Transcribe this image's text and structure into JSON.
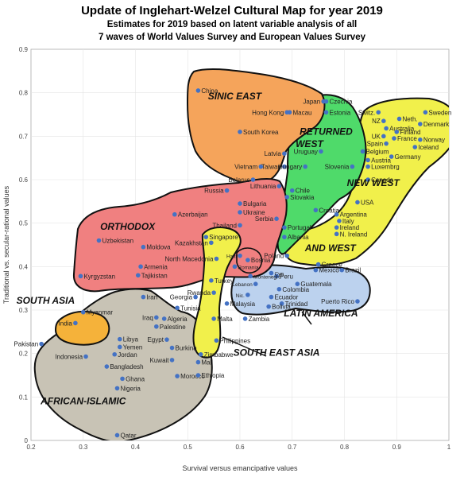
{
  "titles": {
    "main": "Update of Inglehart-Welzel Cultural Map for year 2019",
    "sub1": "Estimates for 2019 based on latent variable analysis of all",
    "sub2": "7 waves of World Values Survey and European Values Survey"
  },
  "chart_data": {
    "type": "scatter",
    "title": "Update of Inglehart-Welzel Cultural Map for year 2019",
    "xlabel": "Survival versus emancipative values",
    "ylabel": "Traditional vs. secular-rational values",
    "xlim": [
      0.2,
      1.0
    ],
    "ylim": [
      0.0,
      0.9
    ],
    "xticks": [
      "0.2",
      "0.3",
      "0.4",
      "0.5",
      "0.6",
      "0.7",
      "0.8",
      "0.9",
      "1"
    ],
    "yticks": [
      "0",
      "0.1",
      "0.2",
      "0.3",
      "0.4",
      "0.5",
      "0.6",
      "0.7",
      "0.8",
      "0.9"
    ],
    "point_color": "#4472c4",
    "regions": [
      {
        "label": "SINIC EAST",
        "color": "#f5a45b",
        "lx": 0.59,
        "ly": 0.785
      },
      {
        "label": "RETURNED",
        "color": "#4fda6a",
        "lx": 0.765,
        "ly": 0.703
      },
      {
        "label": "WEST",
        "color": "#4fda6a",
        "lx": 0.733,
        "ly": 0.675
      },
      {
        "label": "NEW WEST",
        "color": "#f1f04b",
        "lx": 0.855,
        "ly": 0.585
      },
      {
        "label": "ORTHODOX",
        "color": "#f08080",
        "lx": 0.385,
        "ly": 0.485
      },
      {
        "label": "AND WEST",
        "color": "#f1f04b",
        "lx": 0.773,
        "ly": 0.435
      },
      {
        "label": "SOUTH ASIA",
        "color": "#f5b23a",
        "lx": 0.228,
        "ly": 0.315
      },
      {
        "label": "LATIN AMERICA",
        "color": "#bcd2ee",
        "lx": 0.755,
        "ly": 0.285
      },
      {
        "label": "SOUTH EAST ASIA",
        "color": "#f1f04b",
        "lx": 0.67,
        "ly": 0.195
      },
      {
        "label": "AFRICAN-ISLAMIC",
        "color": "#c8c3b5",
        "lx": 0.3,
        "ly": 0.083
      }
    ],
    "points": [
      {
        "name": "China",
        "x": 0.52,
        "y": 0.805
      },
      {
        "name": "Japan",
        "x": 0.76,
        "y": 0.78
      },
      {
        "name": "Czechia",
        "x": 0.765,
        "y": 0.78
      },
      {
        "name": "Hong Kong",
        "x": 0.69,
        "y": 0.755
      },
      {
        "name": "Macau",
        "x": 0.695,
        "y": 0.755
      },
      {
        "name": "Estonia",
        "x": 0.765,
        "y": 0.755
      },
      {
        "name": "South Korea",
        "x": 0.6,
        "y": 0.71
      },
      {
        "name": "Vietnam",
        "x": 0.64,
        "y": 0.63
      },
      {
        "name": "Taiwan",
        "x": 0.685,
        "y": 0.63
      },
      {
        "name": "Latvia",
        "x": 0.685,
        "y": 0.66
      },
      {
        "name": "Hungary",
        "x": 0.725,
        "y": 0.63
      },
      {
        "name": "Slovenia",
        "x": 0.815,
        "y": 0.63
      },
      {
        "name": "Uruguay",
        "x": 0.755,
        "y": 0.665
      },
      {
        "name": "Belarus",
        "x": 0.625,
        "y": 0.6
      },
      {
        "name": "Russia",
        "x": 0.575,
        "y": 0.575
      },
      {
        "name": "Lithuania",
        "x": 0.675,
        "y": 0.585
      },
      {
        "name": "Chile",
        "x": 0.7,
        "y": 0.575
      },
      {
        "name": "Slovakia",
        "x": 0.69,
        "y": 0.56
      },
      {
        "name": "Bulgaria",
        "x": 0.6,
        "y": 0.545
      },
      {
        "name": "Ukraine",
        "x": 0.6,
        "y": 0.525
      },
      {
        "name": "Croatia",
        "x": 0.745,
        "y": 0.53
      },
      {
        "name": "Azerbaijan",
        "x": 0.475,
        "y": 0.52
      },
      {
        "name": "Argentina",
        "x": 0.785,
        "y": 0.52
      },
      {
        "name": "Serbia",
        "x": 0.67,
        "y": 0.51
      },
      {
        "name": "Italy",
        "x": 0.79,
        "y": 0.505
      },
      {
        "name": "Thailand",
        "x": 0.6,
        "y": 0.495
      },
      {
        "name": "Portugal",
        "x": 0.685,
        "y": 0.49
      },
      {
        "name": "Ireland",
        "x": 0.785,
        "y": 0.49
      },
      {
        "name": "N. Ireland",
        "x": 0.785,
        "y": 0.475
      },
      {
        "name": "Uzbekistan",
        "x": 0.33,
        "y": 0.46
      },
      {
        "name": "Kazakhstan",
        "x": 0.545,
        "y": 0.455
      },
      {
        "name": "Albania",
        "x": 0.685,
        "y": 0.468
      },
      {
        "name": "Moldova",
        "x": 0.415,
        "y": 0.445
      },
      {
        "name": "Poland",
        "x": 0.69,
        "y": 0.425
      },
      {
        "name": "Greece",
        "x": 0.75,
        "y": 0.405
      },
      {
        "name": "Bosnia",
        "x": 0.615,
        "y": 0.415
      },
      {
        "name": "Haiti",
        "x": 0.6,
        "y": 0.425
      },
      {
        "name": "North Macedonia",
        "x": 0.555,
        "y": 0.418
      },
      {
        "name": "Armenia",
        "x": 0.41,
        "y": 0.4
      },
      {
        "name": "Romania",
        "x": 0.59,
        "y": 0.4
      },
      {
        "name": "Mexico",
        "x": 0.745,
        "y": 0.392
      },
      {
        "name": "Brazil",
        "x": 0.795,
        "y": 0.392
      },
      {
        "name": "Tajikistan",
        "x": 0.405,
        "y": 0.38
      },
      {
        "name": "Kyrgyzstan",
        "x": 0.295,
        "y": 0.378
      },
      {
        "name": "Peru",
        "x": 0.67,
        "y": 0.378
      },
      {
        "name": "Turkey",
        "x": 0.545,
        "y": 0.368
      },
      {
        "name": "Montenegro",
        "x": 0.62,
        "y": 0.378
      },
      {
        "name": "Lebanon",
        "x": 0.63,
        "y": 0.36
      },
      {
        "name": "Guatemala",
        "x": 0.71,
        "y": 0.36
      },
      {
        "name": "Colombia",
        "x": 0.675,
        "y": 0.348
      },
      {
        "name": "Rwanda",
        "x": 0.55,
        "y": 0.34
      },
      {
        "name": "Nic.",
        "x": 0.615,
        "y": 0.335
      },
      {
        "name": "Ecuador",
        "x": 0.66,
        "y": 0.33
      },
      {
        "name": "Iran",
        "x": 0.415,
        "y": 0.33
      },
      {
        "name": "Georgia",
        "x": 0.515,
        "y": 0.33
      },
      {
        "name": "Cyp",
        "x": 0.66,
        "y": 0.385
      },
      {
        "name": "Puerto Rico",
        "x": 0.825,
        "y": 0.32
      },
      {
        "name": "Malaysia",
        "x": 0.575,
        "y": 0.315
      },
      {
        "name": "Trinidad",
        "x": 0.68,
        "y": 0.315
      },
      {
        "name": "Bolivia",
        "x": 0.655,
        "y": 0.308
      },
      {
        "name": "Myanmar",
        "x": 0.3,
        "y": 0.295
      },
      {
        "name": "Tunisia",
        "x": 0.48,
        "y": 0.305
      },
      {
        "name": "India",
        "x": 0.285,
        "y": 0.27
      },
      {
        "name": "Iraq",
        "x": 0.44,
        "y": 0.283
      },
      {
        "name": "Algeria",
        "x": 0.455,
        "y": 0.28
      },
      {
        "name": "Malta",
        "x": 0.55,
        "y": 0.28
      },
      {
        "name": "Zambia",
        "x": 0.61,
        "y": 0.28
      },
      {
        "name": "Palestine",
        "x": 0.44,
        "y": 0.262
      },
      {
        "name": "Pakistan",
        "x": 0.22,
        "y": 0.222
      },
      {
        "name": "Libya",
        "x": 0.37,
        "y": 0.233
      },
      {
        "name": "Egypt",
        "x": 0.46,
        "y": 0.232
      },
      {
        "name": "Philippines",
        "x": 0.555,
        "y": 0.23
      },
      {
        "name": "Yemen",
        "x": 0.37,
        "y": 0.215
      },
      {
        "name": "Burkina",
        "x": 0.47,
        "y": 0.213
      },
      {
        "name": "Jordan",
        "x": 0.36,
        "y": 0.198
      },
      {
        "name": "Indonesia",
        "x": 0.305,
        "y": 0.193
      },
      {
        "name": "Zimbabwe",
        "x": 0.525,
        "y": 0.198
      },
      {
        "name": "Kuwait",
        "x": 0.47,
        "y": 0.185
      },
      {
        "name": "Mali",
        "x": 0.52,
        "y": 0.18
      },
      {
        "name": "Bangladesh",
        "x": 0.345,
        "y": 0.17
      },
      {
        "name": "Morocco",
        "x": 0.48,
        "y": 0.148
      },
      {
        "name": "Ethiopia",
        "x": 0.52,
        "y": 0.15
      },
      {
        "name": "Ghana",
        "x": 0.375,
        "y": 0.142
      },
      {
        "name": "Nigeria",
        "x": 0.365,
        "y": 0.12
      },
      {
        "name": "Qatar",
        "x": 0.365,
        "y": 0.012
      },
      {
        "name": "Singapore",
        "x": 0.535,
        "y": 0.468
      },
      {
        "name": "Switz.",
        "x": 0.865,
        "y": 0.755
      },
      {
        "name": "Sweden",
        "x": 0.955,
        "y": 0.755
      },
      {
        "name": "NZ",
        "x": 0.875,
        "y": 0.735
      },
      {
        "name": "Neth.",
        "x": 0.905,
        "y": 0.74
      },
      {
        "name": "Denmark",
        "x": 0.945,
        "y": 0.728
      },
      {
        "name": "Australia",
        "x": 0.88,
        "y": 0.718
      },
      {
        "name": "Finland",
        "x": 0.9,
        "y": 0.71
      },
      {
        "name": "UK",
        "x": 0.875,
        "y": 0.7
      },
      {
        "name": "France",
        "x": 0.895,
        "y": 0.695
      },
      {
        "name": "Norway",
        "x": 0.945,
        "y": 0.692
      },
      {
        "name": "Spain",
        "x": 0.88,
        "y": 0.683
      },
      {
        "name": "Iceland",
        "x": 0.935,
        "y": 0.675
      },
      {
        "name": "Belgium",
        "x": 0.835,
        "y": 0.665
      },
      {
        "name": "Germany",
        "x": 0.89,
        "y": 0.653
      },
      {
        "name": "Austria",
        "x": 0.845,
        "y": 0.645
      },
      {
        "name": "Luxembrg",
        "x": 0.845,
        "y": 0.63
      },
      {
        "name": "Canada",
        "x": 0.845,
        "y": 0.6
      },
      {
        "name": "USA",
        "x": 0.825,
        "y": 0.548
      }
    ]
  }
}
